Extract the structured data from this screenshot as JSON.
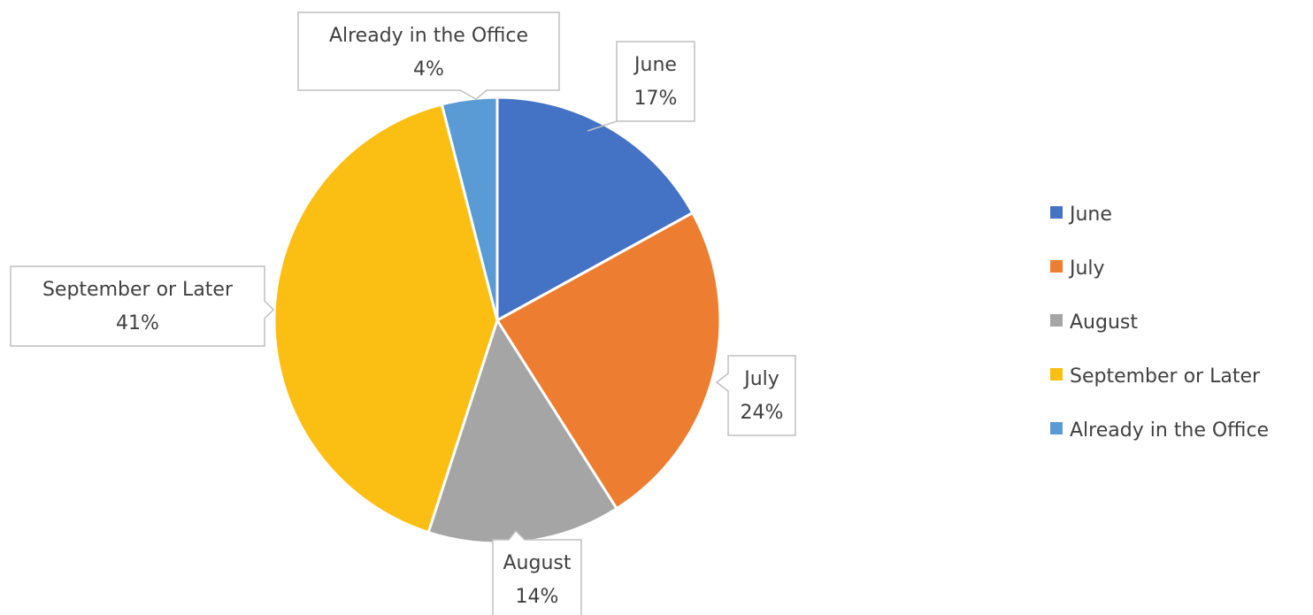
{
  "chart_data": {
    "type": "pie",
    "title": "",
    "categories": [
      "June",
      "July",
      "August",
      "September or Later",
      "Already in the Office"
    ],
    "values": [
      17,
      24,
      14,
      41,
      4
    ],
    "data_labels": [
      "17%",
      "24%",
      "14%",
      "41%",
      "4%"
    ],
    "colors": [
      "#4472C4",
      "#ED7D31",
      "#A5A5A5",
      "#FBBF14",
      "#5B9BD5"
    ],
    "start_angle_deg": 0,
    "direction": "clockwise",
    "legend": {
      "position": "right",
      "entries": [
        "June",
        "July",
        "August",
        "September or Later",
        "Already in the Office"
      ]
    },
    "data_label_style": "callout"
  }
}
